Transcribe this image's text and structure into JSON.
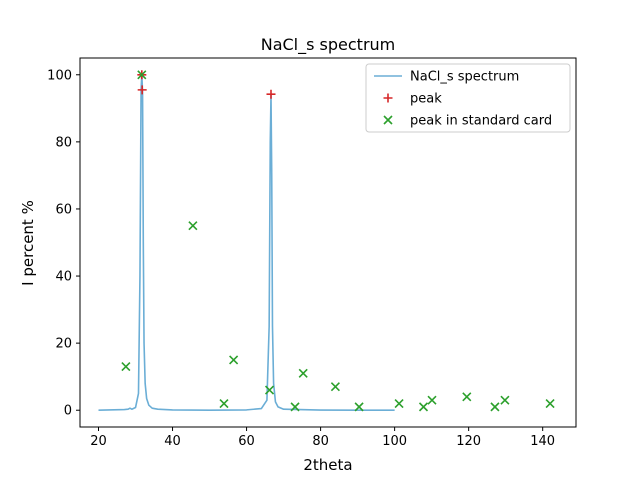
{
  "chart_data": {
    "type": "line",
    "title": "NaCl_s spectrum",
    "xlabel": "2theta",
    "ylabel": "I percent %",
    "xlim": [
      15,
      149
    ],
    "ylim": [
      -5,
      105
    ],
    "xticks": [
      20,
      40,
      60,
      80,
      100,
      120,
      140
    ],
    "yticks": [
      0,
      20,
      40,
      60,
      80,
      100
    ],
    "grid": false,
    "legend_position": "top-right",
    "colors": {
      "spectrum": "#6baed6",
      "peak": "#d62728",
      "standard": "#2ca02c"
    },
    "series": [
      {
        "name": "NaCl_s spectrum",
        "kind": "line",
        "x": [
          20,
          27,
          28,
          28.5,
          29,
          30,
          30.8,
          31.2,
          31.5,
          31.7,
          31.9,
          32.1,
          32.3,
          32.6,
          33.0,
          33.6,
          34.5,
          36,
          40,
          50,
          60,
          64,
          65.5,
          66.1,
          66.4,
          66.6,
          66.8,
          67.0,
          67.3,
          67.8,
          68.5,
          70,
          80,
          90,
          100
        ],
        "y": [
          0,
          0.2,
          0.3,
          0.6,
          0.3,
          0.8,
          5,
          40,
          95.5,
          100,
          95,
          50,
          20,
          8,
          3.5,
          1.5,
          0.6,
          0.3,
          0.1,
          0,
          0.1,
          0.5,
          3,
          25,
          80,
          94,
          70,
          25,
          8,
          2.5,
          1,
          0.3,
          0.05,
          0,
          0
        ]
      },
      {
        "name": "peak",
        "kind": "scatter",
        "marker": "plus",
        "x": [
          31.7,
          31.8,
          66.6
        ],
        "y": [
          100,
          95.5,
          94.2
        ]
      },
      {
        "name": "peak in standard card",
        "kind": "scatter",
        "marker": "x",
        "x": [
          27.4,
          31.7,
          45.5,
          53.9,
          56.5,
          66.2,
          73.1,
          75.3,
          84,
          90.4,
          101.2,
          107.8,
          110.1,
          119.5,
          127.1,
          129.8,
          142
        ],
        "y": [
          13,
          100,
          55,
          2,
          15,
          6,
          1,
          11,
          7,
          1,
          2,
          1,
          3,
          4,
          1,
          3,
          2
        ]
      }
    ]
  }
}
